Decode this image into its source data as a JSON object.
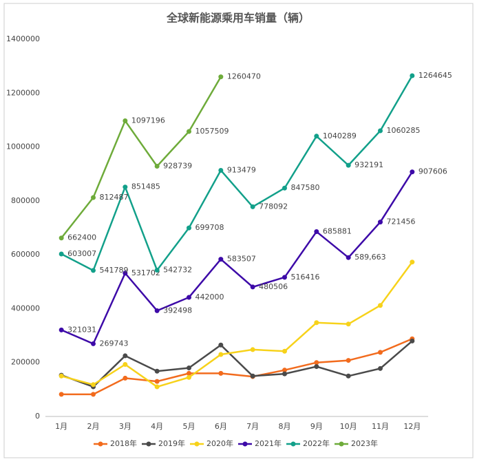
{
  "chart_data": {
    "type": "line",
    "title": "全球新能源乘用车销量（辆）",
    "categories": [
      "1月",
      "2月",
      "3月",
      "4月",
      "5月",
      "6月",
      "7月",
      "8月",
      "9月",
      "10月",
      "11月",
      "12月"
    ],
    "ylim": [
      0,
      1400000
    ],
    "yticks": [
      0,
      200000,
      400000,
      600000,
      800000,
      1000000,
      1200000,
      1400000
    ],
    "grid": false,
    "legend": "bottom",
    "series": [
      {
        "name": "2018年",
        "color": "#f26b1d",
        "data_labels": false,
        "values": [
          82000,
          82000,
          142000,
          130000,
          160000,
          160000,
          148000,
          172000,
          200000,
          208000,
          238000,
          288000
        ]
      },
      {
        "name": "2019年",
        "color": "#4a4a4a",
        "data_labels": false,
        "values": [
          153000,
          110000,
          225000,
          168000,
          180000,
          265000,
          150000,
          158000,
          185000,
          150000,
          178000,
          280000
        ]
      },
      {
        "name": "2020年",
        "color": "#f7d21a",
        "data_labels": false,
        "values": [
          150000,
          118000,
          193000,
          110000,
          145000,
          230000,
          248000,
          242000,
          348000,
          343000,
          412000,
          573000
        ]
      },
      {
        "name": "2021年",
        "color": "#3d0aa8",
        "data_labels": true,
        "values": [
          321031,
          269743,
          531702,
          392498,
          442000,
          583507,
          480506,
          516416,
          685881,
          589663,
          721456,
          907606
        ],
        "value_labels": [
          "321031",
          "269743",
          "531702",
          "392498",
          "442000",
          "583507",
          "480506",
          "516416",
          "685881",
          "589,663",
          "721456",
          "907606"
        ]
      },
      {
        "name": "2022年",
        "color": "#12a08a",
        "data_labels": true,
        "values": [
          603007,
          541789,
          851485,
          542732,
          699708,
          913479,
          778092,
          847580,
          1040289,
          932191,
          1060285,
          1264645
        ]
      },
      {
        "name": "2023年",
        "color": "#6eab3a",
        "data_labels": true,
        "values": [
          662400,
          812487,
          1097196,
          928739,
          1057509,
          1260470,
          null,
          null,
          null,
          null,
          null,
          null
        ]
      }
    ]
  }
}
